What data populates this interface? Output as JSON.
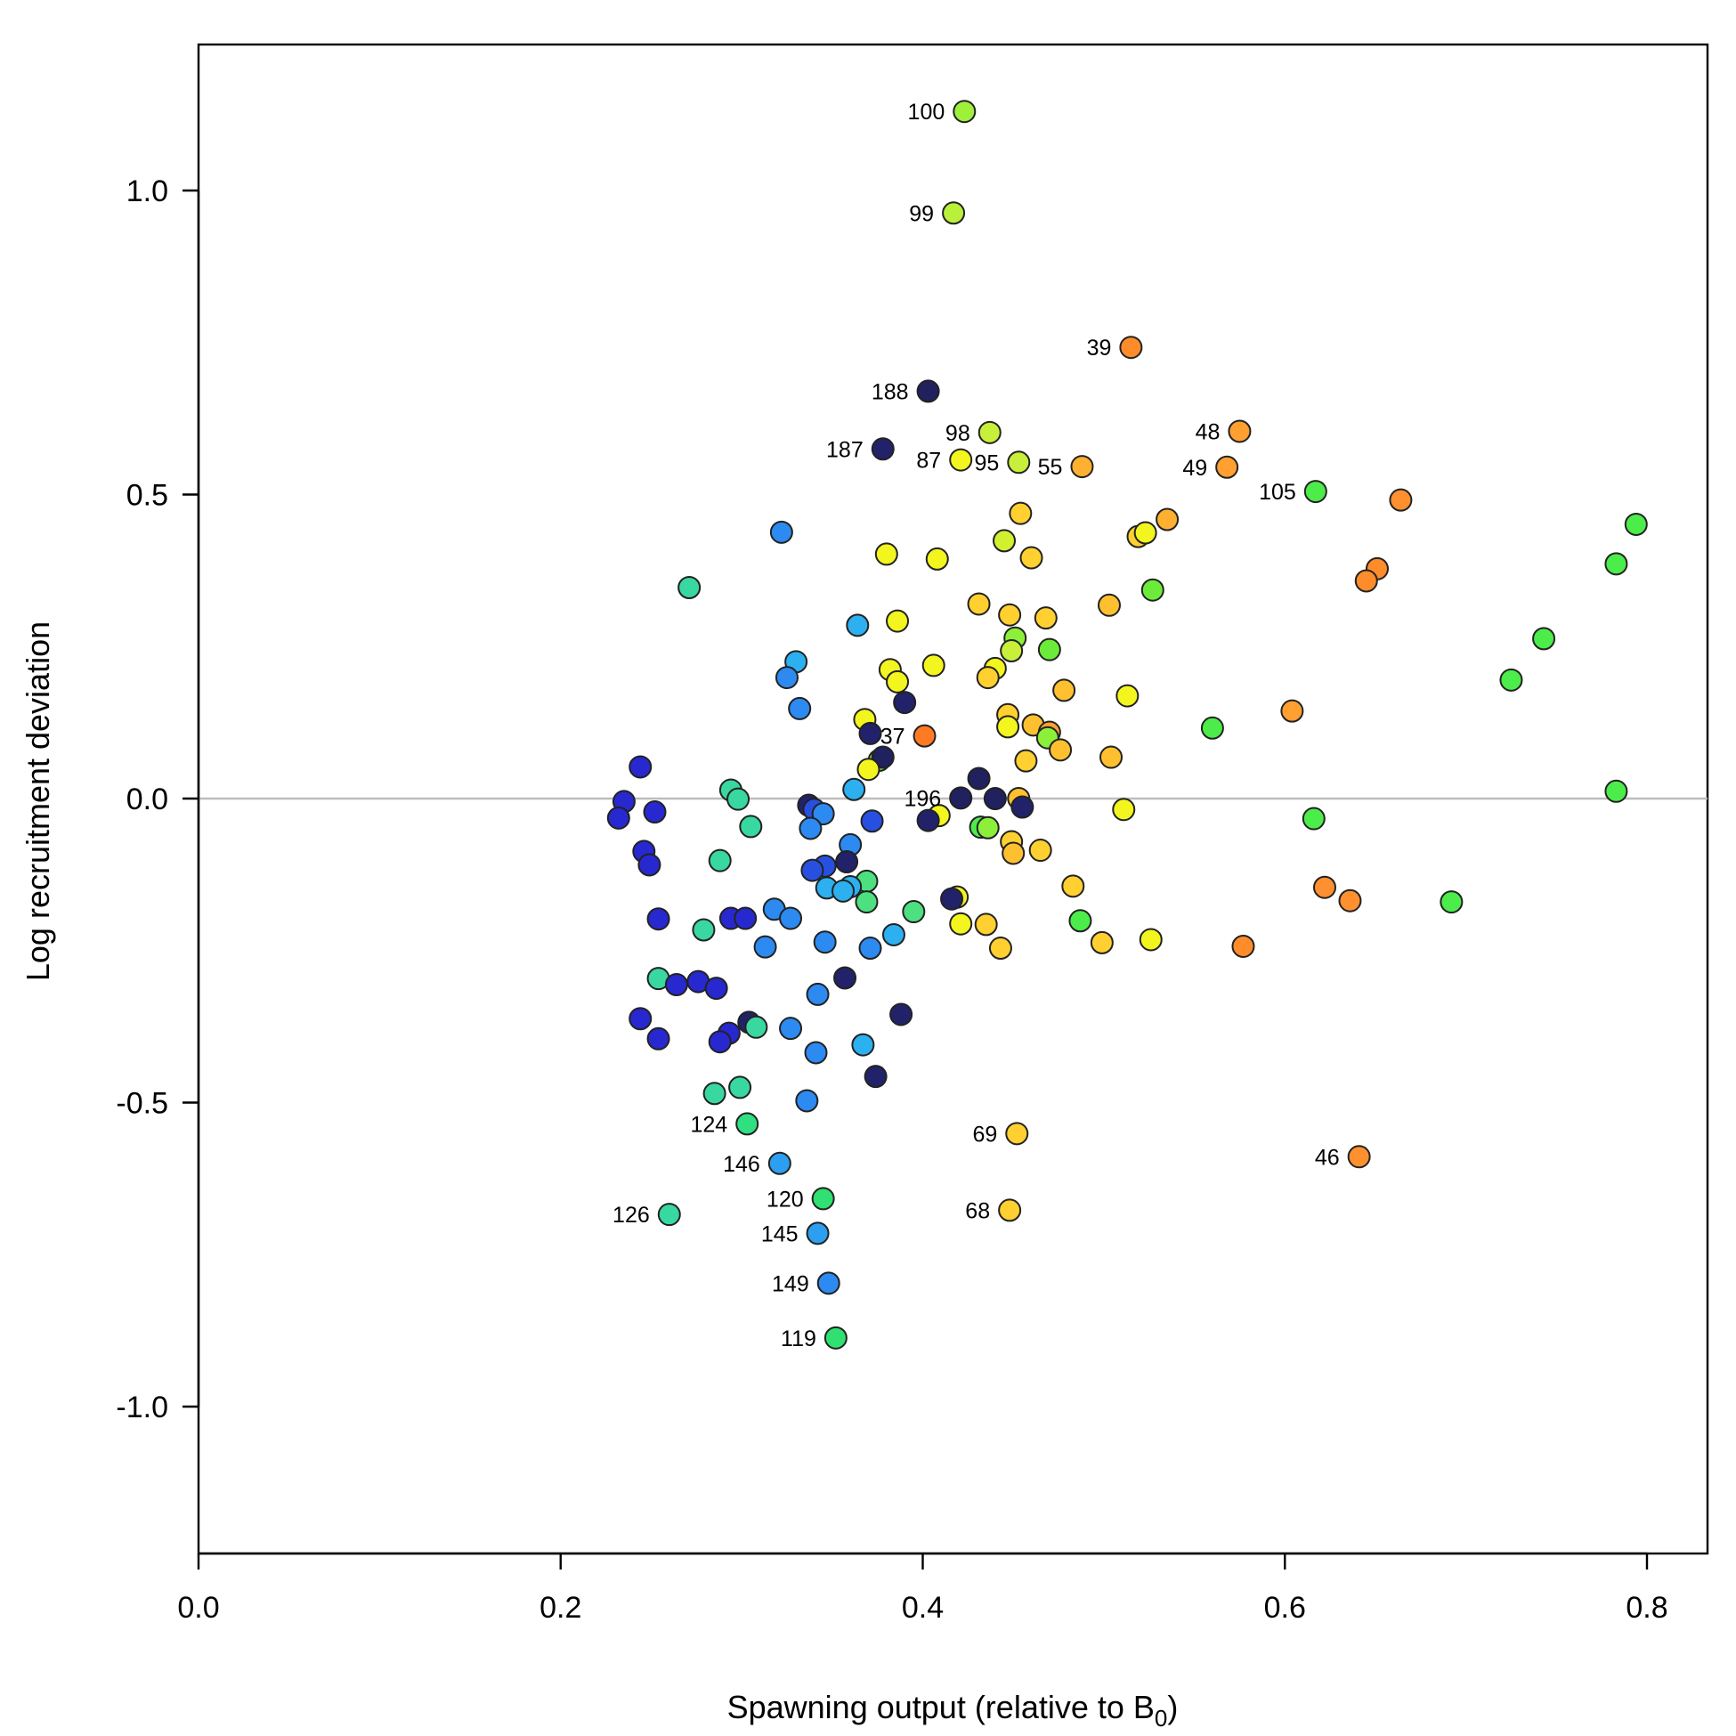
{
  "chart_data": {
    "type": "scatter",
    "xlabel": "Spawning output (relative to B",
    "xlabel_sub": "0",
    "xlabel_end": ")",
    "ylabel": "Log recruitment deviation",
    "xlim": [
      0.0,
      0.83
    ],
    "ylim": [
      -1.24,
      1.24
    ],
    "xticks": [
      0.0,
      0.2,
      0.4,
      0.6,
      0.8
    ],
    "xtick_labels": [
      "0.0",
      "0.2",
      "0.4",
      "0.6",
      "0.8"
    ],
    "yticks": [
      -1.0,
      -0.5,
      0.0,
      0.5,
      1.0
    ],
    "ytick_labels": [
      "-1.0",
      "-0.5",
      "0.0",
      "0.5",
      "1.0"
    ],
    "reference_line_y": 0.0,
    "grid": false,
    "colors": {
      "reference_line": "#bdbdbd",
      "point_stroke": "#222222"
    },
    "points": [
      {
        "x": 0.423,
        "y": 1.13,
        "c": "#9ef03a",
        "label": "100"
      },
      {
        "x": 0.417,
        "y": 0.963,
        "c": "#b8f03a",
        "label": "99"
      },
      {
        "x": 0.515,
        "y": 0.742,
        "c": "#ff8c2a",
        "label": "39"
      },
      {
        "x": 0.403,
        "y": 0.67,
        "c": "#20215e",
        "label": "188"
      },
      {
        "x": 0.437,
        "y": 0.602,
        "c": "#c8f03a",
        "label": "98"
      },
      {
        "x": 0.575,
        "y": 0.604,
        "c": "#ffa030",
        "label": "48"
      },
      {
        "x": 0.378,
        "y": 0.575,
        "c": "#22226a",
        "label": "187"
      },
      {
        "x": 0.421,
        "y": 0.557,
        "c": "#f3f51f",
        "label": "87"
      },
      {
        "x": 0.453,
        "y": 0.553,
        "c": "#c8f03a",
        "label": "95"
      },
      {
        "x": 0.488,
        "y": 0.546,
        "c": "#ffb030",
        "label": "55"
      },
      {
        "x": 0.568,
        "y": 0.545,
        "c": "#ffa030",
        "label": "49"
      },
      {
        "x": 0.617,
        "y": 0.505,
        "c": "#4cec4a",
        "label": "105"
      },
      {
        "x": 0.401,
        "y": 0.103,
        "c": "#ff7a22",
        "label": "37"
      },
      {
        "x": 0.421,
        "y": 0.001,
        "c": "#20215e",
        "label": "196"
      },
      {
        "x": 0.303,
        "y": -0.535,
        "c": "#30e080",
        "label": "124"
      },
      {
        "x": 0.452,
        "y": -0.551,
        "c": "#ffd030",
        "label": "69"
      },
      {
        "x": 0.641,
        "y": -0.589,
        "c": "#ff9030",
        "label": "46"
      },
      {
        "x": 0.321,
        "y": -0.6,
        "c": "#2c9ff0",
        "label": "146"
      },
      {
        "x": 0.345,
        "y": -0.658,
        "c": "#30e070",
        "label": "120"
      },
      {
        "x": 0.448,
        "y": -0.677,
        "c": "#ffd030",
        "label": "68"
      },
      {
        "x": 0.26,
        "y": -0.684,
        "c": "#38d8a0",
        "label": "126"
      },
      {
        "x": 0.342,
        "y": -0.715,
        "c": "#2c9ff0",
        "label": "145"
      },
      {
        "x": 0.348,
        "y": -0.797,
        "c": "#2c8af0",
        "label": "149"
      },
      {
        "x": 0.352,
        "y": -0.887,
        "c": "#30e070",
        "label": "119"
      },
      {
        "x": 0.322,
        "y": 0.438,
        "c": "#2c8af0"
      },
      {
        "x": 0.271,
        "y": 0.347,
        "c": "#38d8a0"
      },
      {
        "x": 0.364,
        "y": 0.285,
        "c": "#2cb0f0"
      },
      {
        "x": 0.33,
        "y": 0.225,
        "c": "#2cb0f0"
      },
      {
        "x": 0.325,
        "y": 0.199,
        "c": "#2c8af0"
      },
      {
        "x": 0.332,
        "y": 0.148,
        "c": "#2c8af0"
      },
      {
        "x": 0.38,
        "y": 0.402,
        "c": "#f3f51f"
      },
      {
        "x": 0.408,
        "y": 0.394,
        "c": "#f3f51f"
      },
      {
        "x": 0.445,
        "y": 0.424,
        "c": "#d0f030"
      },
      {
        "x": 0.46,
        "y": 0.396,
        "c": "#ffd030"
      },
      {
        "x": 0.454,
        "y": 0.469,
        "c": "#ffd030"
      },
      {
        "x": 0.519,
        "y": 0.431,
        "c": "#ffd030"
      },
      {
        "x": 0.523,
        "y": 0.437,
        "c": "#f3f51f"
      },
      {
        "x": 0.535,
        "y": 0.459,
        "c": "#ffb030"
      },
      {
        "x": 0.664,
        "y": 0.491,
        "c": "#ff9030"
      },
      {
        "x": 0.794,
        "y": 0.451,
        "c": "#4cec4a"
      },
      {
        "x": 0.783,
        "y": 0.386,
        "c": "#4cec4a"
      },
      {
        "x": 0.651,
        "y": 0.378,
        "c": "#ff8c2a"
      },
      {
        "x": 0.645,
        "y": 0.358,
        "c": "#ff8c2a"
      },
      {
        "x": 0.527,
        "y": 0.343,
        "c": "#6cec3a"
      },
      {
        "x": 0.431,
        "y": 0.32,
        "c": "#ffd030"
      },
      {
        "x": 0.448,
        "y": 0.302,
        "c": "#ffd030"
      },
      {
        "x": 0.468,
        "y": 0.297,
        "c": "#ffd030"
      },
      {
        "x": 0.503,
        "y": 0.318,
        "c": "#ffc030"
      },
      {
        "x": 0.386,
        "y": 0.292,
        "c": "#f3f51f"
      },
      {
        "x": 0.451,
        "y": 0.264,
        "c": "#8cf03a"
      },
      {
        "x": 0.449,
        "y": 0.243,
        "c": "#c8f03a"
      },
      {
        "x": 0.47,
        "y": 0.245,
        "c": "#6cec3a"
      },
      {
        "x": 0.743,
        "y": 0.263,
        "c": "#4cec4a"
      },
      {
        "x": 0.382,
        "y": 0.212,
        "c": "#f3f51f"
      },
      {
        "x": 0.406,
        "y": 0.219,
        "c": "#f3f51f"
      },
      {
        "x": 0.44,
        "y": 0.214,
        "c": "#f3f51f"
      },
      {
        "x": 0.436,
        "y": 0.199,
        "c": "#ffd030"
      },
      {
        "x": 0.386,
        "y": 0.192,
        "c": "#f3f51f"
      },
      {
        "x": 0.478,
        "y": 0.178,
        "c": "#ffc030"
      },
      {
        "x": 0.513,
        "y": 0.169,
        "c": "#f3f51f"
      },
      {
        "x": 0.725,
        "y": 0.195,
        "c": "#4cec4a"
      },
      {
        "x": 0.39,
        "y": 0.158,
        "c": "#22226a"
      },
      {
        "x": 0.447,
        "y": 0.138,
        "c": "#ffd030"
      },
      {
        "x": 0.604,
        "y": 0.144,
        "c": "#ffa030"
      },
      {
        "x": 0.368,
        "y": 0.13,
        "c": "#f3f51f"
      },
      {
        "x": 0.461,
        "y": 0.121,
        "c": "#ffc030"
      },
      {
        "x": 0.447,
        "y": 0.118,
        "c": "#f3f51f"
      },
      {
        "x": 0.47,
        "y": 0.109,
        "c": "#ffa030"
      },
      {
        "x": 0.469,
        "y": 0.1,
        "c": "#8cf03a"
      },
      {
        "x": 0.56,
        "y": 0.116,
        "c": "#4cec4a"
      },
      {
        "x": 0.371,
        "y": 0.107,
        "c": "#22226a"
      },
      {
        "x": 0.476,
        "y": 0.08,
        "c": "#ffc030"
      },
      {
        "x": 0.376,
        "y": 0.063,
        "c": "#8cf03a"
      },
      {
        "x": 0.378,
        "y": 0.068,
        "c": "#20215e"
      },
      {
        "x": 0.37,
        "y": 0.048,
        "c": "#f3f51f"
      },
      {
        "x": 0.457,
        "y": 0.062,
        "c": "#ffd030"
      },
      {
        "x": 0.504,
        "y": 0.068,
        "c": "#ffc030"
      },
      {
        "x": 0.431,
        "y": 0.033,
        "c": "#20215e"
      },
      {
        "x": 0.362,
        "y": 0.015,
        "c": "#2cb0f0"
      },
      {
        "x": 0.294,
        "y": 0.014,
        "c": "#38d8a0"
      },
      {
        "x": 0.298,
        "y": -0.001,
        "c": "#38d8a0"
      },
      {
        "x": 0.244,
        "y": 0.052,
        "c": "#2828d0"
      },
      {
        "x": 0.235,
        "y": -0.005,
        "c": "#2828d0"
      },
      {
        "x": 0.232,
        "y": -0.032,
        "c": "#2828d0"
      },
      {
        "x": 0.252,
        "y": -0.022,
        "c": "#2828d0"
      },
      {
        "x": 0.337,
        "y": -0.011,
        "c": "#22226a"
      },
      {
        "x": 0.34,
        "y": -0.018,
        "c": "#2850e0"
      },
      {
        "x": 0.345,
        "y": -0.025,
        "c": "#2c8af0"
      },
      {
        "x": 0.44,
        "y": 0.0,
        "c": "#20215e"
      },
      {
        "x": 0.453,
        "y": 0.0,
        "c": "#ffc030"
      },
      {
        "x": 0.455,
        "y": -0.014,
        "c": "#22226a"
      },
      {
        "x": 0.409,
        "y": -0.028,
        "c": "#f3f51f"
      },
      {
        "x": 0.403,
        "y": -0.036,
        "c": "#22226a"
      },
      {
        "x": 0.372,
        "y": -0.037,
        "c": "#2850e0"
      },
      {
        "x": 0.305,
        "y": -0.046,
        "c": "#38d8a0"
      },
      {
        "x": 0.338,
        "y": -0.049,
        "c": "#2c8af0"
      },
      {
        "x": 0.511,
        "y": -0.018,
        "c": "#f3f51f"
      },
      {
        "x": 0.432,
        "y": -0.047,
        "c": "#4cec4a"
      },
      {
        "x": 0.436,
        "y": -0.048,
        "c": "#8cf03a"
      },
      {
        "x": 0.616,
        "y": -0.033,
        "c": "#4cec4a"
      },
      {
        "x": 0.783,
        "y": 0.012,
        "c": "#4cec4a"
      },
      {
        "x": 0.449,
        "y": -0.071,
        "c": "#ffd030"
      },
      {
        "x": 0.36,
        "y": -0.076,
        "c": "#2c8af0"
      },
      {
        "x": 0.45,
        "y": -0.09,
        "c": "#ffc030"
      },
      {
        "x": 0.465,
        "y": -0.085,
        "c": "#ffd030"
      },
      {
        "x": 0.246,
        "y": -0.087,
        "c": "#2828d0"
      },
      {
        "x": 0.249,
        "y": -0.109,
        "c": "#2828d0"
      },
      {
        "x": 0.288,
        "y": -0.102,
        "c": "#38d8a0"
      },
      {
        "x": 0.358,
        "y": -0.104,
        "c": "#22226a"
      },
      {
        "x": 0.346,
        "y": -0.111,
        "c": "#2850e0"
      },
      {
        "x": 0.339,
        "y": -0.118,
        "c": "#2850e0"
      },
      {
        "x": 0.369,
        "y": -0.136,
        "c": "#4ce080"
      },
      {
        "x": 0.36,
        "y": -0.145,
        "c": "#2cb0f0"
      },
      {
        "x": 0.347,
        "y": -0.147,
        "c": "#2cb0f0"
      },
      {
        "x": 0.356,
        "y": -0.152,
        "c": "#2cb0f0"
      },
      {
        "x": 0.483,
        "y": -0.144,
        "c": "#ffd030"
      },
      {
        "x": 0.622,
        "y": -0.146,
        "c": "#ff9030"
      },
      {
        "x": 0.636,
        "y": -0.168,
        "c": "#ff9030"
      },
      {
        "x": 0.692,
        "y": -0.17,
        "c": "#4cec4a"
      },
      {
        "x": 0.419,
        "y": -0.162,
        "c": "#f3f51f"
      },
      {
        "x": 0.416,
        "y": -0.165,
        "c": "#22226a"
      },
      {
        "x": 0.369,
        "y": -0.17,
        "c": "#4ce080"
      },
      {
        "x": 0.395,
        "y": -0.186,
        "c": "#4ce080"
      },
      {
        "x": 0.318,
        "y": -0.182,
        "c": "#2c8af0"
      },
      {
        "x": 0.294,
        "y": -0.197,
        "c": "#2828d0"
      },
      {
        "x": 0.302,
        "y": -0.197,
        "c": "#2828d0"
      },
      {
        "x": 0.327,
        "y": -0.197,
        "c": "#2c8af0"
      },
      {
        "x": 0.254,
        "y": -0.198,
        "c": "#2828d0"
      },
      {
        "x": 0.487,
        "y": -0.201,
        "c": "#4cec4a"
      },
      {
        "x": 0.421,
        "y": -0.206,
        "c": "#f3f51f"
      },
      {
        "x": 0.435,
        "y": -0.207,
        "c": "#ffd030"
      },
      {
        "x": 0.279,
        "y": -0.216,
        "c": "#38d8a0"
      },
      {
        "x": 0.384,
        "y": -0.224,
        "c": "#2cb0f0"
      },
      {
        "x": 0.346,
        "y": -0.236,
        "c": "#2c8af0"
      },
      {
        "x": 0.499,
        "y": -0.237,
        "c": "#ffd030"
      },
      {
        "x": 0.526,
        "y": -0.232,
        "c": "#f3f51f"
      },
      {
        "x": 0.313,
        "y": -0.244,
        "c": "#2c8af0"
      },
      {
        "x": 0.371,
        "y": -0.246,
        "c": "#2c8af0"
      },
      {
        "x": 0.443,
        "y": -0.246,
        "c": "#ffd030"
      },
      {
        "x": 0.577,
        "y": -0.243,
        "c": "#ff8c2a"
      },
      {
        "x": 0.254,
        "y": -0.296,
        "c": "#38d8a0"
      },
      {
        "x": 0.264,
        "y": -0.306,
        "c": "#2828d0"
      },
      {
        "x": 0.276,
        "y": -0.301,
        "c": "#2828d0"
      },
      {
        "x": 0.286,
        "y": -0.312,
        "c": "#2828d0"
      },
      {
        "x": 0.357,
        "y": -0.295,
        "c": "#22226a"
      },
      {
        "x": 0.342,
        "y": -0.322,
        "c": "#2c8af0"
      },
      {
        "x": 0.388,
        "y": -0.355,
        "c": "#22226a"
      },
      {
        "x": 0.244,
        "y": -0.362,
        "c": "#2828d0"
      },
      {
        "x": 0.304,
        "y": -0.368,
        "c": "#22226a"
      },
      {
        "x": 0.308,
        "y": -0.376,
        "c": "#38d8a0"
      },
      {
        "x": 0.327,
        "y": -0.378,
        "c": "#2c8af0"
      },
      {
        "x": 0.293,
        "y": -0.386,
        "c": "#2828d0"
      },
      {
        "x": 0.254,
        "y": -0.395,
        "c": "#2828d0"
      },
      {
        "x": 0.288,
        "y": -0.4,
        "c": "#2828d0"
      },
      {
        "x": 0.367,
        "y": -0.405,
        "c": "#2cb0f0"
      },
      {
        "x": 0.341,
        "y": -0.418,
        "c": "#2c8af0"
      },
      {
        "x": 0.374,
        "y": -0.457,
        "c": "#22226a"
      },
      {
        "x": 0.285,
        "y": -0.485,
        "c": "#38d8a0"
      },
      {
        "x": 0.299,
        "y": -0.475,
        "c": "#38d8a0"
      },
      {
        "x": 0.336,
        "y": -0.497,
        "c": "#2c8af0"
      }
    ]
  }
}
